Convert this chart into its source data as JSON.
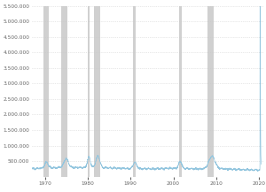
{
  "xlim": [
    1967.0,
    2021.0
  ],
  "ylim": [
    0,
    5500000
  ],
  "yticks": [
    500000,
    1000000,
    1500000,
    2000000,
    2500000,
    3000000,
    3500000,
    4000000,
    4500000,
    5000000,
    5500000
  ],
  "xticks": [
    1970,
    1980,
    1990,
    2000,
    2010,
    2020
  ],
  "line_color": "#92c5de",
  "background_color": "#ffffff",
  "plot_bg_color": "#ffffff",
  "grid_color": "#d0d0d0",
  "recession_color": "#c8c8c8",
  "recession_alpha": 0.85,
  "recessions": [
    [
      1969.75,
      1971.0
    ],
    [
      1973.75,
      1975.25
    ],
    [
      1980.0,
      1980.5
    ],
    [
      1981.5,
      1982.917
    ],
    [
      1990.5,
      1991.25
    ],
    [
      2001.25,
      2001.917
    ],
    [
      2007.917,
      2009.5
    ]
  ]
}
